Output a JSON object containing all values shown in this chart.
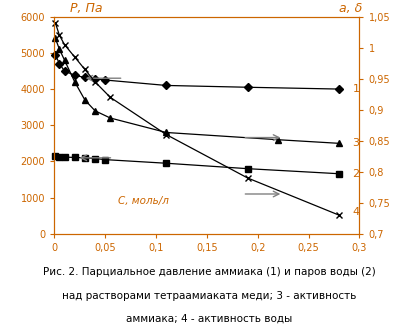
{
  "title_left": "Р, Па",
  "title_right": "а, δ",
  "xlabel": "С, моль/л",
  "caption_line1": "Рис. 2. Парциальное давление аммиака (1) и паров воды (2)",
  "caption_line2": "над растворами тетраамиаката меди; 3 - активность",
  "caption_line3": "аммиака; 4 - активность воды",
  "xlim": [
    0,
    0.3
  ],
  "ylim_left": [
    0,
    6000
  ],
  "ylim_right": [
    0.7,
    1.05
  ],
  "xticks": [
    0,
    0.05,
    0.1,
    0.15,
    0.2,
    0.25,
    0.3
  ],
  "xtick_labels": [
    "0",
    "0,05",
    "0,1",
    "0,15",
    "0,2",
    "0,25",
    "0,3"
  ],
  "yticks_left": [
    0,
    1000,
    2000,
    3000,
    4000,
    5000,
    6000
  ],
  "ytick_labels_left": [
    "0",
    "1000",
    "2000",
    "3000",
    "4000",
    "5000",
    "6000"
  ],
  "yticks_right": [
    0.7,
    0.75,
    0.8,
    0.85,
    0.9,
    0.95,
    1.0,
    1.05
  ],
  "ytick_labels_right": [
    "0,7",
    "0,75",
    "0,8",
    "0,85",
    "0,9",
    "0,95",
    "1",
    "1,05"
  ],
  "line1_x": [
    0.001,
    0.005,
    0.01,
    0.02,
    0.03,
    0.04,
    0.05,
    0.11,
    0.19,
    0.28
  ],
  "line1_y": [
    4950,
    4700,
    4500,
    4380,
    4320,
    4280,
    4250,
    4100,
    4050,
    4000
  ],
  "line2_x": [
    0.001,
    0.005,
    0.01,
    0.02,
    0.03,
    0.04,
    0.05,
    0.11,
    0.19,
    0.28
  ],
  "line2_y": [
    2150,
    2130,
    2120,
    2110,
    2100,
    2080,
    2050,
    1950,
    1800,
    1660
  ],
  "line3_x": [
    0.001,
    0.005,
    0.01,
    0.02,
    0.03,
    0.04,
    0.055,
    0.11,
    0.22,
    0.28
  ],
  "line3_y": [
    5400,
    5100,
    4800,
    4200,
    3700,
    3400,
    3200,
    2800,
    2600,
    2500
  ],
  "line4_x": [
    0.001,
    0.005,
    0.01,
    0.02,
    0.03,
    0.04,
    0.055,
    0.11,
    0.19,
    0.28
  ],
  "line4_y": [
    1.04,
    1.02,
    1.005,
    0.985,
    0.965,
    0.945,
    0.92,
    0.86,
    0.79,
    0.73
  ],
  "orange": "#cc6600",
  "black": "#000000",
  "gray": "#808080"
}
